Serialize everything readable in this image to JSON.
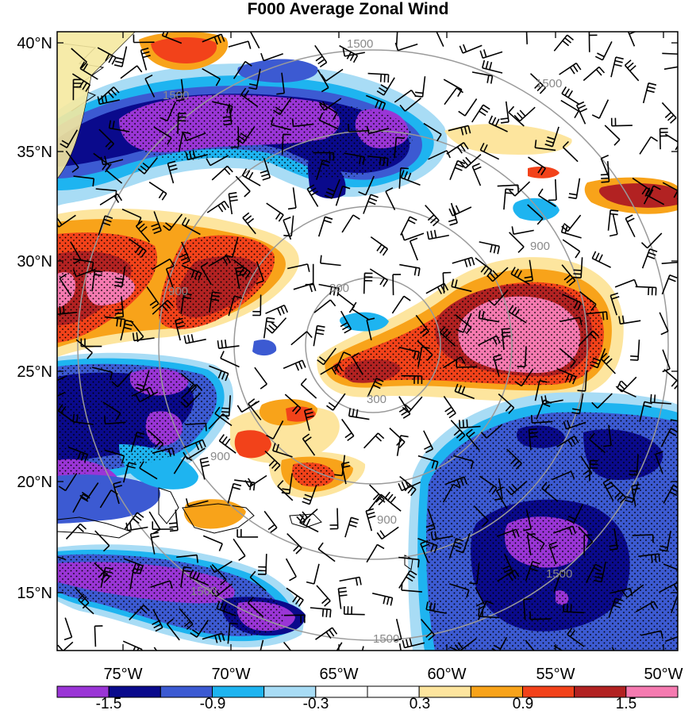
{
  "title": "F000 Average Zonal Wind",
  "lat_labels": [
    "40°N",
    "35°N",
    "30°N",
    "25°N",
    "20°N",
    "15°N"
  ],
  "lon_labels": [
    "75°W",
    "70°W",
    "65°W",
    "60°W",
    "55°W",
    "50°W"
  ],
  "contour_labels": [
    "1500",
    "1500",
    "1500",
    "900",
    "900",
    "900",
    "300",
    "300",
    "900",
    "1500",
    "1500",
    "1500"
  ],
  "colorbar": {
    "colors": [
      "#9a35d6",
      "#0a0a8c",
      "#3c5ad2",
      "#1eb4f0",
      "#a8dcf5",
      "#ffffff",
      "#ffffff",
      "#fde59e",
      "#f8a31a",
      "#f2421a",
      "#b22222",
      "#f57ab0"
    ],
    "labels": [
      "-1.5",
      "-0.9",
      "-0.3",
      "0.3",
      "0.9",
      "1.5"
    ]
  },
  "map_colors": {
    "purple": "#9a35d6",
    "navy": "#0a0a8c",
    "blue": "#3c5ad2",
    "cyan": "#1eb4f0",
    "lightblue": "#a8dcf5",
    "cream": "#fde59e",
    "orange": "#f8a31a",
    "red": "#f2421a",
    "darkred": "#b22222",
    "pink": "#f57ab0",
    "contour": "#9a9a9a"
  }
}
